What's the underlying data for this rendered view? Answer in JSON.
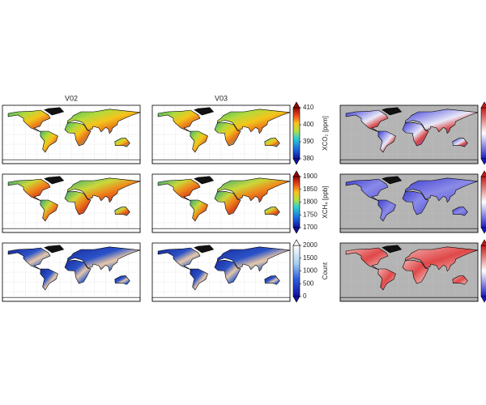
{
  "columns": [
    "V02",
    "V03"
  ],
  "colorbars": [
    {
      "label": "XCO₂ [ppm]",
      "lim": [
        380,
        410
      ],
      "ticks": [
        380,
        390,
        400,
        410
      ]
    },
    {
      "label": "XCH₄ [ppb]",
      "lim": [
        1700,
        1900
      ],
      "ticks": [
        1700,
        1750,
        1800,
        1850,
        1900
      ]
    },
    {
      "label": "Count",
      "lim": [
        0,
        2000
      ],
      "ticks": [
        0,
        500,
        1000,
        1500,
        2000
      ]
    }
  ]
}
